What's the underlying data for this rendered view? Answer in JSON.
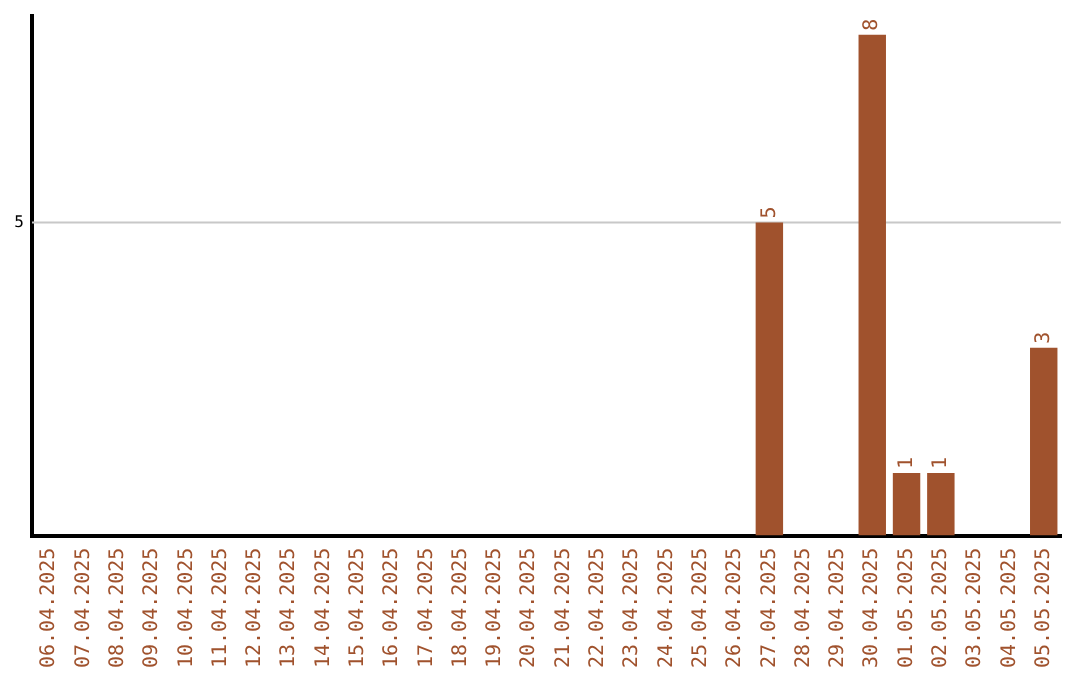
{
  "chart_data": {
    "type": "bar",
    "categories": [
      "06.04.2025",
      "07.04.2025",
      "08.04.2025",
      "09.04.2025",
      "10.04.2025",
      "11.04.2025",
      "12.04.2025",
      "13.04.2025",
      "14.04.2025",
      "15.04.2025",
      "16.04.2025",
      "17.04.2025",
      "18.04.2025",
      "19.04.2025",
      "20.04.2025",
      "21.04.2025",
      "22.04.2025",
      "23.04.2025",
      "24.04.2025",
      "25.04.2025",
      "26.04.2025",
      "27.04.2025",
      "28.04.2025",
      "29.04.2025",
      "30.04.2025",
      "01.05.2025",
      "02.05.2025",
      "03.05.2025",
      "04.05.2025",
      "05.05.2025"
    ],
    "values": [
      null,
      null,
      null,
      null,
      null,
      null,
      null,
      null,
      null,
      null,
      null,
      null,
      null,
      null,
      null,
      null,
      null,
      null,
      null,
      null,
      null,
      5,
      null,
      null,
      8,
      1,
      1,
      null,
      null,
      3
    ],
    "data_labels": true,
    "color": "#a0522d",
    "ylim": [
      0,
      8.3
    ],
    "ref_lines": [
      {
        "axis": "y",
        "value": 5,
        "label": "5",
        "color": "#c8c8c8"
      }
    ],
    "legend": false
  }
}
